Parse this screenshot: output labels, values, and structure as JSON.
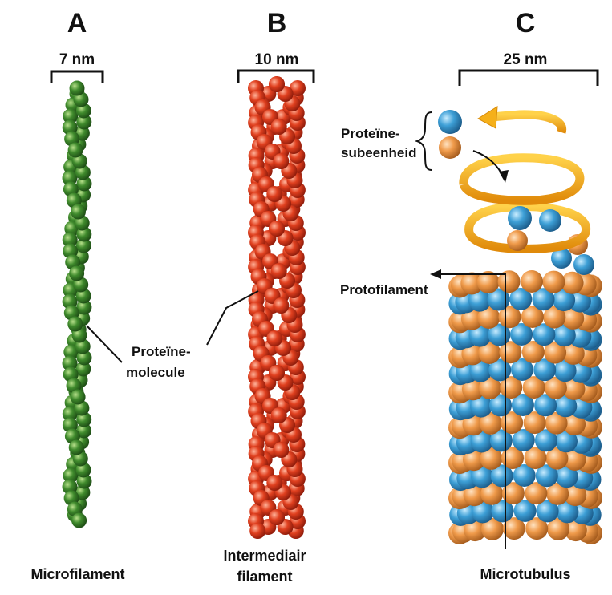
{
  "panels": {
    "a": {
      "letter": "A",
      "scale": "7 nm",
      "caption": "Microfilament"
    },
    "b": {
      "letter": "B",
      "scale": "10 nm",
      "caption_line1": "Intermediair",
      "caption_line2": "filament"
    },
    "c": {
      "letter": "C",
      "scale": "25 nm",
      "caption": "Microtubulus"
    }
  },
  "annotations": {
    "protein_molecule_line1": "Proteïne-",
    "protein_molecule_line2": "molecule",
    "protein_subunit_line1": "Proteïne-",
    "protein_subunit_line2": "subeenheid",
    "protofilament": "Protofilament"
  },
  "colors": {
    "microfilament": "#3f8a2c",
    "intermediate": "#e0401f",
    "tubulin_blue": "#3d9fd6",
    "tubulin_orange": "#ef9a4a",
    "helix": "#f6b21a"
  }
}
